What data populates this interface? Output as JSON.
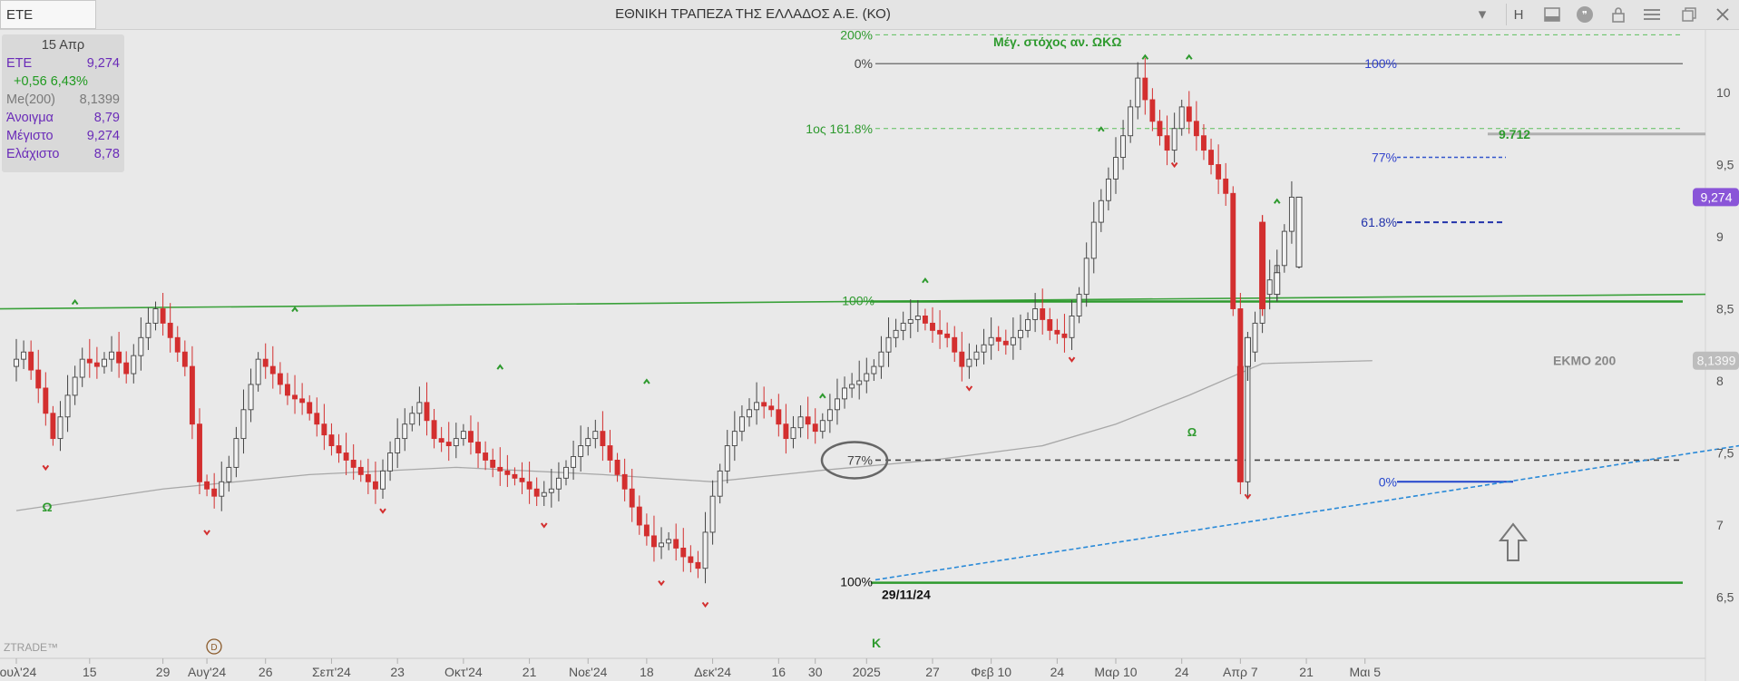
{
  "window": {
    "symbol_value": "ETE",
    "title": "ΕΘΝΙΚΗ ΤΡΑΠΕΖΑ ΤΗΣ ΕΛΛΑΔΟΣ Α.Ε. (ΚΟ)",
    "period_button": "H",
    "toolbar_icons": [
      "chevron-down-icon",
      "panel-icon",
      "comment-icon",
      "lock-icon",
      "menu-icon",
      "restore-icon",
      "close-icon"
    ]
  },
  "infobox": {
    "date": "15 Απρ",
    "rows": [
      {
        "label": "ETE",
        "value": "9,274",
        "color": "#6a2bb8"
      },
      {
        "label": "+0,56 6,43%",
        "value": "",
        "color": "#1f9a1f"
      },
      {
        "label": "Me(200)",
        "value": "8,1399",
        "color": "#7a7a7a"
      },
      {
        "label": "Άνοιγμα",
        "value": "8,79",
        "color": "#6a2bb8"
      },
      {
        "label": "Μέγιστο",
        "value": "9,274",
        "color": "#6a2bb8"
      },
      {
        "label": "Ελάχιστο",
        "value": "8,78",
        "color": "#6a2bb8"
      }
    ]
  },
  "chart_data": {
    "type": "candlestick",
    "y_ticks": [
      {
        "value": 6.5,
        "label": "6,5"
      },
      {
        "value": 7,
        "label": "7"
      },
      {
        "value": 7.5,
        "label": "7,5"
      },
      {
        "value": 8,
        "label": "8"
      },
      {
        "value": 8.5,
        "label": "8,5"
      },
      {
        "value": 9,
        "label": "9"
      },
      {
        "value": 9.5,
        "label": "9,5"
      },
      {
        "value": 10,
        "label": "10"
      }
    ],
    "x_ticks": [
      {
        "index": 0,
        "label": "Ιουλ'24"
      },
      {
        "index": 10,
        "label": "15"
      },
      {
        "index": 20,
        "label": "29"
      },
      {
        "index": 26,
        "label": "Αυγ'24"
      },
      {
        "index": 34,
        "label": "26"
      },
      {
        "index": 43,
        "label": "Σεπ'24"
      },
      {
        "index": 52,
        "label": "23"
      },
      {
        "index": 61,
        "label": "Οκτ'24"
      },
      {
        "index": 70,
        "label": "21"
      },
      {
        "index": 78,
        "label": "Νοε'24"
      },
      {
        "index": 86,
        "label": "18"
      },
      {
        "index": 95,
        "label": "Δεκ'24"
      },
      {
        "index": 104,
        "label": "16"
      },
      {
        "index": 109,
        "label": "30"
      },
      {
        "index": 116,
        "label": "2025"
      },
      {
        "index": 125,
        "label": "27"
      },
      {
        "index": 133,
        "label": "Φεβ 10"
      },
      {
        "index": 142,
        "label": "24"
      },
      {
        "index": 150,
        "label": "Μαρ 10"
      },
      {
        "index": 159,
        "label": "24"
      },
      {
        "index": 167,
        "label": "Απρ 7"
      },
      {
        "index": 176,
        "label": "21"
      },
      {
        "index": 184,
        "label": "Μαι 5"
      }
    ],
    "close_path": [
      [
        0,
        8.1
      ],
      [
        2,
        8.2
      ],
      [
        4,
        7.95
      ],
      [
        6,
        7.6
      ],
      [
        8,
        7.9
      ],
      [
        10,
        8.15
      ],
      [
        12,
        8.1
      ],
      [
        14,
        8.2
      ],
      [
        16,
        8.05
      ],
      [
        18,
        8.3
      ],
      [
        20,
        8.5
      ],
      [
        22,
        8.3
      ],
      [
        24,
        8.1
      ],
      [
        26,
        7.3
      ],
      [
        28,
        7.2
      ],
      [
        30,
        7.4
      ],
      [
        32,
        7.8
      ],
      [
        34,
        8.15
      ],
      [
        36,
        8.05
      ],
      [
        38,
        7.9
      ],
      [
        40,
        7.85
      ],
      [
        42,
        7.7
      ],
      [
        44,
        7.55
      ],
      [
        46,
        7.45
      ],
      [
        48,
        7.35
      ],
      [
        50,
        7.25
      ],
      [
        52,
        7.5
      ],
      [
        54,
        7.7
      ],
      [
        56,
        7.85
      ],
      [
        58,
        7.6
      ],
      [
        60,
        7.55
      ],
      [
        62,
        7.65
      ],
      [
        64,
        7.5
      ],
      [
        66,
        7.4
      ],
      [
        68,
        7.35
      ],
      [
        70,
        7.3
      ],
      [
        72,
        7.2
      ],
      [
        74,
        7.25
      ],
      [
        76,
        7.4
      ],
      [
        78,
        7.55
      ],
      [
        80,
        7.65
      ],
      [
        82,
        7.45
      ],
      [
        84,
        7.25
      ],
      [
        86,
        7.0
      ],
      [
        88,
        6.85
      ],
      [
        90,
        6.9
      ],
      [
        92,
        6.78
      ],
      [
        94,
        6.7
      ],
      [
        96,
        7.2
      ],
      [
        98,
        7.55
      ],
      [
        100,
        7.75
      ],
      [
        102,
        7.85
      ],
      [
        104,
        7.8
      ],
      [
        106,
        7.6
      ],
      [
        108,
        7.75
      ],
      [
        110,
        7.65
      ],
      [
        112,
        7.8
      ],
      [
        114,
        7.95
      ],
      [
        116,
        8.0
      ],
      [
        118,
        8.1
      ],
      [
        120,
        8.3
      ],
      [
        122,
        8.4
      ],
      [
        124,
        8.45
      ],
      [
        126,
        8.35
      ],
      [
        128,
        8.3
      ],
      [
        130,
        8.1
      ],
      [
        132,
        8.2
      ],
      [
        134,
        8.3
      ],
      [
        136,
        8.25
      ],
      [
        138,
        8.35
      ],
      [
        140,
        8.5
      ],
      [
        142,
        8.35
      ],
      [
        144,
        8.3
      ],
      [
        146,
        8.6
      ],
      [
        148,
        9.1
      ],
      [
        150,
        9.4
      ],
      [
        152,
        9.7
      ],
      [
        154,
        10.1
      ],
      [
        156,
        9.8
      ],
      [
        158,
        9.6
      ],
      [
        160,
        9.9
      ],
      [
        162,
        9.7
      ],
      [
        164,
        9.5
      ],
      [
        166,
        9.3
      ],
      [
        167,
        8.5
      ],
      [
        168,
        7.3
      ],
      [
        169,
        8.2
      ],
      [
        171,
        8.6
      ],
      [
        173,
        8.8
      ],
      [
        175,
        9.274
      ]
    ],
    "candles": [
      {
        "x": 167,
        "o": 8.1,
        "h": 8.15,
        "l": 7.3,
        "c": 7.3,
        "dir": "down"
      },
      {
        "x": 168,
        "o": 8.1,
        "h": 8.3,
        "l": 8.0,
        "c": 8.3,
        "dir": "up"
      },
      {
        "x": 170,
        "o": 9.1,
        "h": 9.15,
        "l": 8.45,
        "c": 8.5,
        "dir": "down"
      },
      {
        "x": 172,
        "o": 8.6,
        "h": 8.8,
        "l": 8.55,
        "c": 8.75,
        "dir": "up"
      },
      {
        "x": 175,
        "o": 8.79,
        "h": 9.274,
        "l": 8.78,
        "c": 9.274,
        "dir": "up"
      }
    ],
    "ma200": [
      [
        0,
        7.1
      ],
      [
        20,
        7.25
      ],
      [
        40,
        7.35
      ],
      [
        60,
        7.4
      ],
      [
        80,
        7.35
      ],
      [
        95,
        7.3
      ],
      [
        110,
        7.38
      ],
      [
        125,
        7.45
      ],
      [
        140,
        7.55
      ],
      [
        150,
        7.7
      ],
      [
        160,
        7.9
      ],
      [
        170,
        8.12
      ],
      [
        185,
        8.14
      ]
    ],
    "ma_label": "ΕΚΜΟ 200",
    "last_price_label": "9,274",
    "ma_value_label": "8,1399",
    "annotations": {
      "target_label": "Μέγ. στόχος αν. ΩΚΩ",
      "fib_200": "200%",
      "fib_0_top": "0%",
      "fib_1618": "1ος 161.8%",
      "fib_100_mid": "100%",
      "fib_77_left": "77%",
      "fib_100_low": "100%",
      "date_low": "29/11/24",
      "fib_100_top": "100%",
      "fib_77_right": "77%",
      "fib_618": "61.8%",
      "fib_0_right": "0%",
      "level_9712": "9.712",
      "omega_1": "Ω",
      "omega_2": "Ω",
      "kappa": "Κ",
      "watermark": "ZTRADE™",
      "d_marker": "D"
    },
    "levels": {
      "green_resistance": 8.55,
      "dashed_77": 7.45,
      "low_support": 6.6,
      "fib_0_top_level": 10.2,
      "fib_200_level": 10.4,
      "fib_1618_level": 9.75,
      "fib_77_right_level": 9.55,
      "fib_618_level": 9.1,
      "fib_0_right_level": 7.3,
      "level_9712_value": 9.712
    }
  }
}
